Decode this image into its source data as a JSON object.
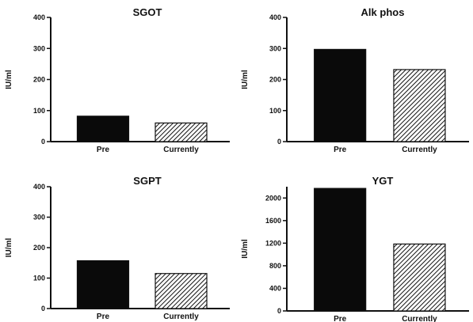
{
  "chart_data": [
    {
      "type": "bar",
      "title": "SGOT",
      "ylabel": "IU/ml",
      "categories": [
        "Pre",
        "Currently"
      ],
      "values": [
        82,
        60
      ],
      "ylim": [
        0,
        400
      ],
      "yticks": [
        "0",
        "100",
        "200",
        "300",
        "400"
      ],
      "fills": [
        "solid-black",
        "diagonal-hatch"
      ]
    },
    {
      "type": "bar",
      "title": "Alk phos",
      "ylabel": "IU/ml",
      "categories": [
        "Pre",
        "Currently"
      ],
      "values": [
        297,
        232
      ],
      "ylim": [
        0,
        400
      ],
      "yticks": [
        "0",
        "100",
        "200",
        "300",
        "400"
      ],
      "fills": [
        "solid-black",
        "diagonal-hatch"
      ]
    },
    {
      "type": "bar",
      "title": "SGPT",
      "ylabel": "IU/ml",
      "categories": [
        "Pre",
        "Currently"
      ],
      "values": [
        157,
        115
      ],
      "ylim": [
        0,
        400
      ],
      "yticks": [
        "0",
        "100",
        "200",
        "300",
        "400"
      ],
      "fills": [
        "solid-black",
        "diagonal-hatch"
      ]
    },
    {
      "type": "bar",
      "title": "YGT",
      "ylabel": "IU/ml",
      "categories": [
        "Pre",
        "Currently"
      ],
      "values": [
        2170,
        1185
      ],
      "ylim": [
        0,
        2200
      ],
      "yticks": [
        "0",
        "400",
        "800",
        "1200",
        "1600",
        "2000"
      ],
      "fills": [
        "solid-black",
        "diagonal-hatch"
      ]
    }
  ],
  "colors": {
    "bar_pre": "#0a0a0a",
    "bar_current_hatch": "#111111",
    "axis": "#111111"
  }
}
